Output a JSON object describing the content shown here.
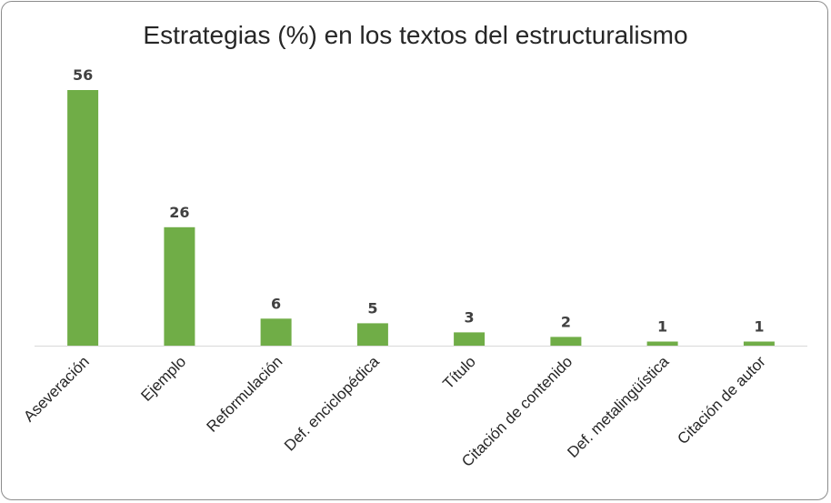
{
  "chart_data": {
    "type": "bar",
    "title": "Estrategias (%) en los textos del estructuralismo",
    "xlabel": "",
    "ylabel": "",
    "categories": [
      "Aseveración",
      "Ejemplo",
      "Reformulación",
      "Def. enciclopédica",
      "Título",
      "Citación de contenido",
      "Def. metalingüística",
      "Citación de autor"
    ],
    "values": [
      56,
      26,
      6,
      5,
      3,
      2,
      1,
      1
    ],
    "ylim": [
      0,
      56
    ],
    "grid": false,
    "legend": "none",
    "bar_color": "#70ad47"
  }
}
